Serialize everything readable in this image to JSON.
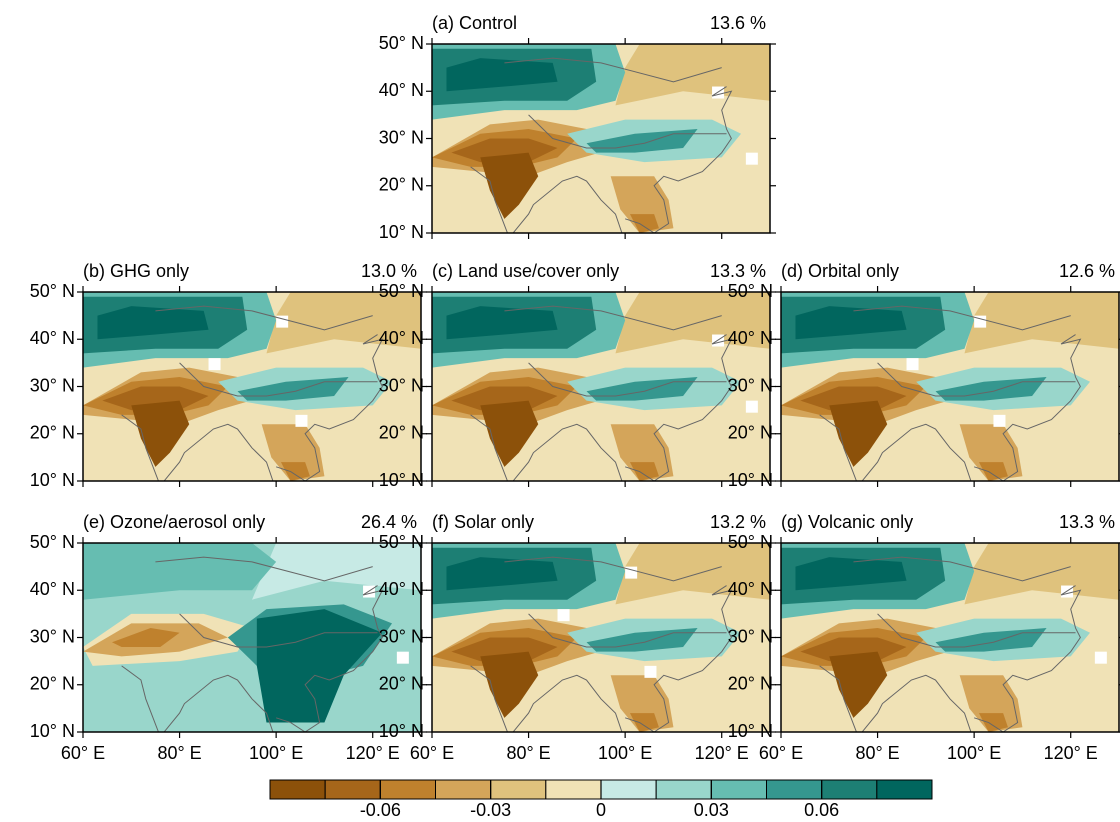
{
  "panels": [
    {
      "label": "(a) Control",
      "percent": "13.6 %"
    },
    {
      "label": "(b) GHG only",
      "percent": "13.0 %"
    },
    {
      "label": "(c) Land use/cover only",
      "percent": "13.3 %"
    },
    {
      "label": "(d) Orbital only",
      "percent": "12.6 %"
    },
    {
      "label": "(e) Ozone/aerosol only",
      "percent": "26.4 %"
    },
    {
      "label": "(f) Solar only",
      "percent": "13.2 %"
    },
    {
      "label": "(g) Volcanic only",
      "percent": "13.3 %"
    }
  ],
  "lon_range": [
    60,
    130
  ],
  "lat_range": [
    10,
    50
  ],
  "lat_ticks": [
    {
      "value": 50,
      "label": "50° N"
    },
    {
      "value": 40,
      "label": "40° N"
    },
    {
      "value": 30,
      "label": "30° N"
    },
    {
      "value": 20,
      "label": "20° N"
    },
    {
      "value": 10,
      "label": "10° N"
    }
  ],
  "lon_ticks": [
    {
      "value": 60,
      "label": "60° E"
    },
    {
      "value": 80,
      "label": "80° E"
    },
    {
      "value": 100,
      "label": "100° E"
    },
    {
      "value": 120,
      "label": "120° E"
    }
  ],
  "colorbar": {
    "colors": [
      "#8c510a",
      "#a6661a",
      "#bf812d",
      "#d4a55a",
      "#dfc27d",
      "#f0e2b6",
      "#c7eae5",
      "#99d6cb",
      "#66bdb1",
      "#35978f",
      "#1d7f74",
      "#01665e"
    ],
    "range": [
      -0.09,
      0.09
    ],
    "ticks": [
      -0.06,
      -0.03,
      0,
      0.03,
      0.06
    ]
  }
}
